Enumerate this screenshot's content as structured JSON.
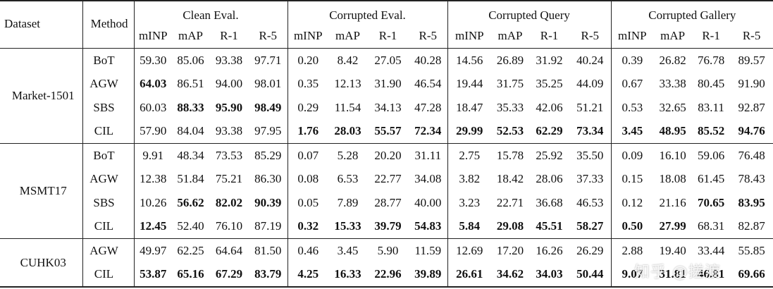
{
  "headers": {
    "dataset": "Dataset",
    "method": "Method",
    "groups": [
      "Clean Eval.",
      "Corrupted Eval.",
      "Corrupted Query",
      "Corrupted Gallery"
    ],
    "metrics": [
      "mINP",
      "mAP",
      "R-1",
      "R-5"
    ]
  },
  "groups": [
    {
      "dataset": "Market-1501",
      "rows": [
        {
          "method": "BoT",
          "values": [
            "59.30",
            "85.06",
            "93.38",
            "97.71",
            "0.20",
            "8.42",
            "27.05",
            "40.28",
            "14.56",
            "26.89",
            "31.92",
            "40.24",
            "0.39",
            "26.82",
            "76.78",
            "89.57"
          ],
          "bold": []
        },
        {
          "method": "AGW",
          "values": [
            "64.03",
            "86.51",
            "94.00",
            "98.01",
            "0.35",
            "12.13",
            "31.90",
            "46.54",
            "19.44",
            "31.75",
            "35.25",
            "44.09",
            "0.67",
            "33.38",
            "80.45",
            "91.90"
          ],
          "bold": [
            0
          ]
        },
        {
          "method": "SBS",
          "values": [
            "60.03",
            "88.33",
            "95.90",
            "98.49",
            "0.29",
            "11.54",
            "34.13",
            "47.28",
            "18.47",
            "35.33",
            "42.06",
            "51.21",
            "0.53",
            "32.65",
            "83.11",
            "92.87"
          ],
          "bold": [
            1,
            2,
            3
          ]
        },
        {
          "method": "CIL",
          "values": [
            "57.90",
            "84.04",
            "93.38",
            "97.95",
            "1.76",
            "28.03",
            "55.57",
            "72.34",
            "29.99",
            "52.53",
            "62.29",
            "73.34",
            "3.45",
            "48.95",
            "85.52",
            "94.76"
          ],
          "bold": [
            4,
            5,
            6,
            7,
            8,
            9,
            10,
            11,
            12,
            13,
            14,
            15
          ]
        }
      ]
    },
    {
      "dataset": "MSMT17",
      "rows": [
        {
          "method": "BoT",
          "values": [
            "9.91",
            "48.34",
            "73.53",
            "85.29",
            "0.07",
            "5.28",
            "20.20",
            "31.11",
            "2.75",
            "15.78",
            "25.92",
            "35.50",
            "0.09",
            "16.10",
            "59.06",
            "76.48"
          ],
          "bold": []
        },
        {
          "method": "AGW",
          "values": [
            "12.38",
            "51.84",
            "75.21",
            "86.30",
            "0.08",
            "6.53",
            "22.77",
            "34.08",
            "3.82",
            "18.42",
            "28.06",
            "37.33",
            "0.15",
            "18.08",
            "61.45",
            "78.43"
          ],
          "bold": []
        },
        {
          "method": "SBS",
          "values": [
            "10.26",
            "56.62",
            "82.02",
            "90.39",
            "0.05",
            "7.89",
            "28.77",
            "40.00",
            "3.23",
            "22.71",
            "36.68",
            "46.53",
            "0.12",
            "21.16",
            "70.65",
            "83.95"
          ],
          "bold": [
            1,
            2,
            3,
            14,
            15
          ]
        },
        {
          "method": "CIL",
          "values": [
            "12.45",
            "52.40",
            "76.10",
            "87.19",
            "0.32",
            "15.33",
            "39.79",
            "54.83",
            "5.84",
            "29.08",
            "45.51",
            "58.27",
            "0.50",
            "27.99",
            "68.31",
            "82.87"
          ],
          "bold": [
            0,
            4,
            5,
            6,
            7,
            8,
            9,
            10,
            11,
            12,
            13
          ]
        }
      ]
    },
    {
      "dataset": "CUHK03",
      "rows": [
        {
          "method": "AGW",
          "values": [
            "49.97",
            "62.25",
            "64.64",
            "81.50",
            "0.46",
            "3.45",
            "5.90",
            "11.59",
            "12.69",
            "17.20",
            "16.26",
            "26.29",
            "2.88",
            "19.40",
            "33.44",
            "55.85"
          ],
          "bold": []
        },
        {
          "method": "CIL",
          "values": [
            "53.87",
            "65.16",
            "67.29",
            "83.79",
            "4.25",
            "16.33",
            "22.96",
            "39.89",
            "26.61",
            "34.62",
            "34.03",
            "50.44",
            "9.07",
            "31.81",
            "46.81",
            "69.66"
          ],
          "bold": [
            0,
            1,
            2,
            3,
            4,
            5,
            6,
            7,
            8,
            9,
            10,
            11,
            12,
            13,
            14,
            15
          ]
        }
      ]
    }
  ],
  "watermark": "知乎 @搓渡"
}
